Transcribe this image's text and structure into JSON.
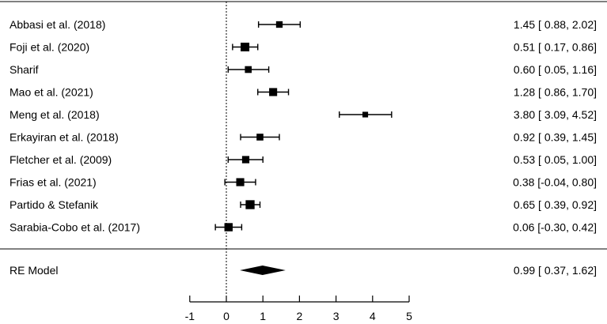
{
  "chart_data": {
    "type": "forest",
    "studies": [
      {
        "label": "Abbasi et al. (2018)",
        "estimate": 1.45,
        "ci_low": 0.88,
        "ci_high": 2.02,
        "ci_text": "1.45 [ 0.88, 2.02]",
        "weight": 0.55
      },
      {
        "label": "Foji et al. (2020)",
        "estimate": 0.51,
        "ci_low": 0.17,
        "ci_high": 0.86,
        "ci_text": "0.51 [ 0.17, 0.86]",
        "weight": 1.0
      },
      {
        "label": "Sharif",
        "estimate": 0.6,
        "ci_low": 0.05,
        "ci_high": 1.16,
        "ci_text": "0.60 [ 0.05, 1.16]",
        "weight": 0.6
      },
      {
        "label": "Mao et al. (2021)",
        "estimate": 1.28,
        "ci_low": 0.86,
        "ci_high": 1.7,
        "ci_text": "1.28 [ 0.86, 1.70]",
        "weight": 0.85
      },
      {
        "label": "Meng et al. (2018)",
        "estimate": 3.8,
        "ci_low": 3.09,
        "ci_high": 4.52,
        "ci_text": "3.80 [ 3.09, 4.52]",
        "weight": 0.35
      },
      {
        "label": "Erkayiran et al. (2018)",
        "estimate": 0.92,
        "ci_low": 0.39,
        "ci_high": 1.45,
        "ci_text": "0.92 [ 0.39, 1.45]",
        "weight": 0.6
      },
      {
        "label": "Fletcher et al.  (2009)",
        "estimate": 0.53,
        "ci_low": 0.05,
        "ci_high": 1.0,
        "ci_text": "0.53 [ 0.05, 1.00]",
        "weight": 0.7
      },
      {
        "label": "Frias et al. (2021)",
        "estimate": 0.38,
        "ci_low": -0.04,
        "ci_high": 0.8,
        "ci_text": "0.38 [-0.04, 0.80]",
        "weight": 0.85
      },
      {
        "label": "Partido & Stefanik",
        "estimate": 0.65,
        "ci_low": 0.39,
        "ci_high": 0.92,
        "ci_text": "0.65 [ 0.39, 0.92]",
        "weight": 1.05
      },
      {
        "label": "Sarabia-Cobo et al. (2017)",
        "estimate": 0.06,
        "ci_low": -0.3,
        "ci_high": 0.42,
        "ci_text": "0.06 [-0.30, 0.42]",
        "weight": 0.9
      }
    ],
    "summary": {
      "label": "RE Model",
      "estimate": 0.99,
      "ci_low": 0.37,
      "ci_high": 1.62,
      "ci_text": "0.99 [ 0.37, 1.62]"
    },
    "x_ticks": [
      -1,
      0,
      1,
      2,
      3,
      4,
      5
    ],
    "x_tick_labels": [
      "-1",
      "0",
      "1",
      "2",
      "3",
      "4",
      "5"
    ],
    "xlim": [
      -1,
      5
    ],
    "reference_value": 0,
    "colors": {
      "marks": "#000000",
      "background": "#ffffff"
    }
  }
}
